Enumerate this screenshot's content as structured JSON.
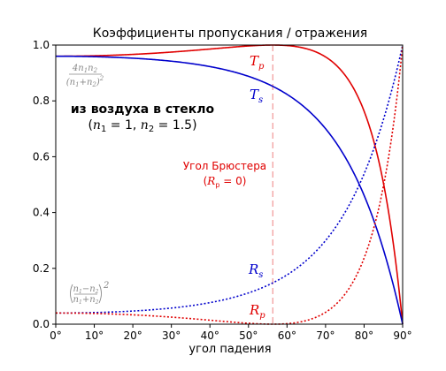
{
  "chart_data": {
    "type": "line",
    "title": "Коэффициенты пропускания / отражения",
    "xlabel": "угол падения",
    "ylabel": "",
    "xlim": [
      0,
      90
    ],
    "ylim": [
      0,
      1.0
    ],
    "x_ticks": [
      "0°",
      "10°",
      "20°",
      "30°",
      "40°",
      "50°",
      "60°",
      "70°",
      "80°",
      "90°"
    ],
    "y_ticks": [
      "0.0",
      "0.2",
      "0.4",
      "0.6",
      "0.8",
      "1.0"
    ],
    "n1": 1.0,
    "n2": 1.5,
    "brewster_angle_deg": 56.3,
    "series": [
      {
        "name": "Tp",
        "label_main": "T",
        "label_sub": "p",
        "color": "#e00000",
        "style": "solid",
        "polarization": "p",
        "kind": "T"
      },
      {
        "name": "Ts",
        "label_main": "T",
        "label_sub": "s",
        "color": "#0000cc",
        "style": "solid",
        "polarization": "s",
        "kind": "T"
      },
      {
        "name": "Rs",
        "label_main": "R",
        "label_sub": "s",
        "color": "#0000cc",
        "style": "dotted",
        "polarization": "s",
        "kind": "R"
      },
      {
        "name": "Rp",
        "label_main": "R",
        "label_sub": "p",
        "color": "#e00000",
        "style": "dotted",
        "polarization": "p",
        "kind": "R"
      }
    ],
    "annotations": {
      "heading": "из воздуха в стекло",
      "indices_open": "(",
      "n1_sym": "n",
      "n1_sub": "1",
      "n1_eq": " = 1, ",
      "n2_sym": "n",
      "n2_sub": "2",
      "n2_eq": " = 1.5)",
      "brewster_line1": "Угол Брюстера",
      "brewster_line2_open": "(",
      "brewster_line2_sym": "R",
      "brewster_line2_sub": "p",
      "brewster_line2_close": " = 0)",
      "t0_numer": "4n",
      "t0_numer_sub1": "1",
      "t0_numer_mid": "n",
      "t0_numer_sub2": "2",
      "t0_denom": "(n",
      "t0_denom_sub1": "1",
      "t0_denom_mid": "+n",
      "t0_denom_sub2": "2",
      "t0_denom_close": ")",
      "t0_denom_exp": "2",
      "r0_numer": "n",
      "r0_numer_sub1": "1",
      "r0_numer_mid": "−n",
      "r0_numer_sub2": "2",
      "r0_denom": "n",
      "r0_denom_sub1": "1",
      "r0_denom_mid": "+n",
      "r0_denom_sub2": "2",
      "r0_exp": "2"
    },
    "colors": {
      "red": "#e00000",
      "blue": "#0000cc",
      "brewster_line": "#f08080",
      "grey": "#888888"
    }
  }
}
